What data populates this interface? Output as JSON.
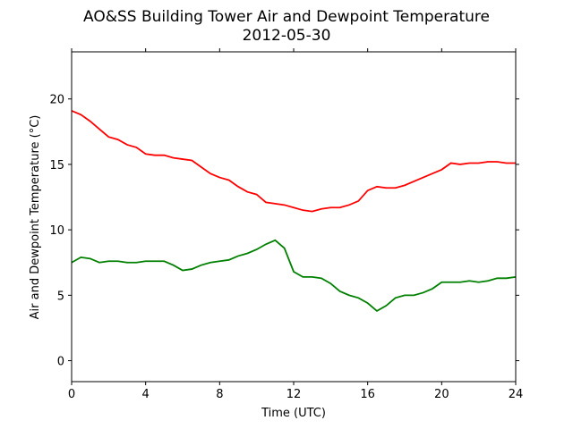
{
  "chart_data": {
    "type": "line",
    "title": "AO&SS Building Tower Air and Dewpoint Temperature",
    "subtitle": "2012-05-30",
    "x_label": "Time (UTC)",
    "y_label": "Air and Dewpoint Temperature (°C)",
    "x": [
      0,
      0.5,
      1,
      1.5,
      2,
      2.5,
      3,
      3.5,
      4,
      4.5,
      5,
      5.5,
      6,
      6.5,
      7,
      7.5,
      8,
      8.5,
      9,
      9.5,
      10,
      10.5,
      11,
      11.5,
      12,
      12.5,
      13,
      13.5,
      14,
      14.5,
      15,
      15.5,
      16,
      16.5,
      17,
      17.5,
      18,
      18.5,
      19,
      19.5,
      20,
      20.5,
      21,
      21.5,
      22,
      22.5,
      23,
      23.5,
      24
    ],
    "series": [
      {
        "color": "#ff0000",
        "values": [
          19.1,
          18.8,
          18.3,
          17.7,
          17.1,
          16.9,
          16.5,
          16.3,
          15.8,
          15.7,
          15.7,
          15.5,
          15.4,
          15.3,
          14.8,
          14.3,
          14.0,
          13.8,
          13.3,
          12.9,
          12.7,
          12.1,
          12.0,
          11.9,
          11.7,
          11.5,
          11.4,
          11.6,
          11.7,
          11.7,
          11.9,
          12.2,
          13.0,
          13.3,
          13.2,
          13.2,
          13.4,
          13.7,
          14.0,
          14.3,
          14.6,
          15.1,
          15.0,
          15.1,
          15.1,
          15.2,
          15.2,
          15.1,
          15.1
        ]
      },
      {
        "color": "#008000",
        "values": [
          7.5,
          7.9,
          7.8,
          7.5,
          7.6,
          7.6,
          7.5,
          7.5,
          7.6,
          7.6,
          7.6,
          7.3,
          6.9,
          7.0,
          7.3,
          7.5,
          7.6,
          7.7,
          8.0,
          8.2,
          8.5,
          8.9,
          9.2,
          8.6,
          6.8,
          6.4,
          6.4,
          6.3,
          5.9,
          5.3,
          5.0,
          4.8,
          4.4,
          3.8,
          4.2,
          4.8,
          5.0,
          5.0,
          5.2,
          5.5,
          6.0,
          6.0,
          6.0,
          6.1,
          6.0,
          6.1,
          6.3,
          6.3,
          6.4
        ]
      }
    ],
    "xlim": [
      0,
      24
    ],
    "xticks": [
      0,
      4,
      8,
      12,
      16,
      20,
      24
    ],
    "ylim": [
      -1.6,
      23.6
    ],
    "yticks": [
      0,
      5,
      10,
      15,
      20
    ],
    "grid": false
  }
}
